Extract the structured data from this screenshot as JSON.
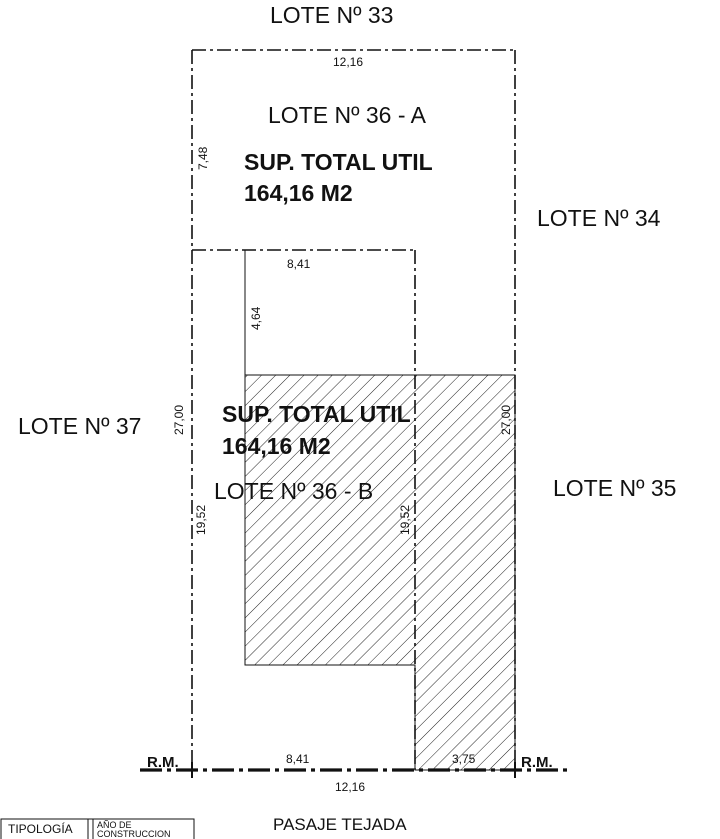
{
  "lots": {
    "top_neighbor": "LOTE Nº 33",
    "right_upper_neighbor": "LOTE Nº 34",
    "right_lower_neighbor": "LOTE Nº 35",
    "left_neighbor": "LOTE Nº 37",
    "lot_a": "LOTE Nº 36 - A",
    "lot_b": "LOTE Nº 36 - B"
  },
  "areas": {
    "lot_a_title": "SUP. TOTAL UTIL",
    "lot_a_value": "164,16  M2",
    "lot_b_title": "SUP. TOTAL UTIL",
    "lot_b_value": "164,16  M2"
  },
  "dimensions": {
    "top_width": "12,16",
    "lot_a_depth": "7,48",
    "inner_width": "8,41",
    "inner_depth": "4,64",
    "left_total_depth": "27,00",
    "right_total_depth": "27,00",
    "left_lower_depth": "19,52",
    "inner_lower_depth": "19,52",
    "front_left_width": "8,41",
    "front_right_width": "3,75",
    "front_total_width": "12,16"
  },
  "markers": {
    "rm_left": "R.M.",
    "rm_right": "R.M."
  },
  "street": {
    "name": "PASAJE TEJADA"
  },
  "legend": {
    "tipologia": "TIPOLOGÍA",
    "anio_line1": "AÑO DE",
    "anio_line2": "CONSTRUCCION"
  },
  "colors": {
    "ink": "#111111",
    "background": "#ffffff"
  }
}
